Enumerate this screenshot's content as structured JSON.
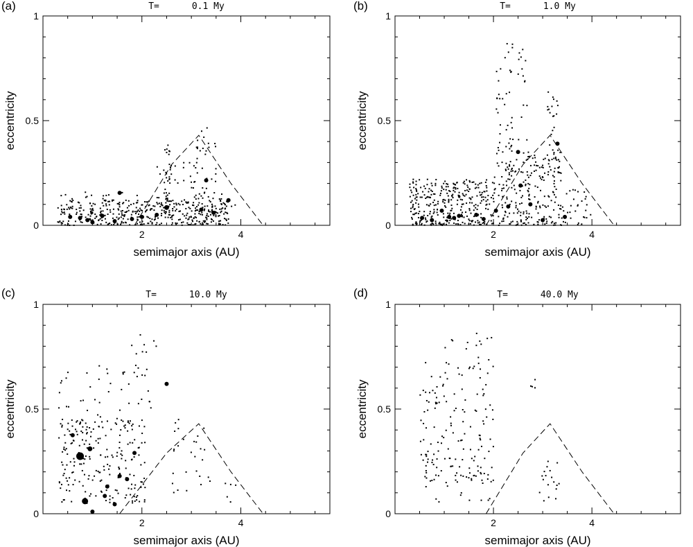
{
  "figure": {
    "background": "#ffffff",
    "ink": "#000000"
  },
  "chart_data": [
    {
      "id": "a",
      "panel_label": "(a)",
      "type": "scatter",
      "title": "T=      0.1 My",
      "xlabel": "semimajor axis (AU)",
      "ylabel": "eccentricity",
      "xlim": [
        0,
        5.8
      ],
      "ylim": [
        0,
        1
      ],
      "xticks": [
        2,
        4
      ],
      "xtick_labels": [
        "2",
        "4"
      ],
      "yticks": [
        0,
        0.5,
        1
      ],
      "ytick_labels": [
        "0",
        "0.5",
        "1"
      ],
      "boundary_curve": [
        [
          1.85,
          0.0
        ],
        [
          2.6,
          0.29
        ],
        [
          3.15,
          0.43
        ],
        [
          3.8,
          0.2
        ],
        [
          4.45,
          0.0
        ]
      ],
      "seed": 11,
      "cloud": [
        {
          "x": [
            0.3,
            3.75
          ],
          "y": [
            0.0,
            0.12
          ],
          "n": 380
        },
        {
          "x": [
            0.3,
            2.0
          ],
          "y": [
            0.05,
            0.16
          ],
          "n": 45
        },
        {
          "x": [
            2.45,
            2.6
          ],
          "y": [
            0.05,
            0.4
          ],
          "n": 30
        },
        {
          "x": [
            2.2,
            2.9
          ],
          "y": [
            0.12,
            0.3
          ],
          "n": 20
        },
        {
          "x": [
            2.95,
            3.5
          ],
          "y": [
            0.05,
            0.4
          ],
          "n": 55
        },
        {
          "x": [
            3.1,
            3.4
          ],
          "y": [
            0.3,
            0.48
          ],
          "n": 8
        },
        {
          "x": [
            3.55,
            3.95
          ],
          "y": [
            0.04,
            0.16
          ],
          "n": 12
        }
      ],
      "big": [
        [
          0.55,
          0.04,
          3
        ],
        [
          0.75,
          0.035,
          3
        ],
        [
          0.9,
          0.025,
          3
        ],
        [
          1.0,
          0.015,
          3
        ],
        [
          1.2,
          0.045,
          3
        ],
        [
          1.45,
          0.02,
          3
        ],
        [
          1.55,
          0.155,
          3
        ],
        [
          1.8,
          0.03,
          3
        ],
        [
          2.0,
          0.04,
          3
        ],
        [
          2.3,
          0.05,
          3
        ],
        [
          2.5,
          0.085,
          3.5
        ],
        [
          3.3,
          0.215,
          3
        ],
        [
          3.45,
          0.06,
          3
        ],
        [
          3.75,
          0.12,
          3
        ],
        [
          3.2,
          0.075,
          3
        ]
      ]
    },
    {
      "id": "b",
      "panel_label": "(b)",
      "type": "scatter",
      "title": "T=      1.0 My",
      "xlabel": "semimajor axis (AU)",
      "ylabel": "eccentricity",
      "xlim": [
        0,
        5.8
      ],
      "ylim": [
        0,
        1
      ],
      "xticks": [
        2,
        4
      ],
      "xtick_labels": [
        "2",
        "4"
      ],
      "yticks": [
        0,
        0.5,
        1
      ],
      "ytick_labels": [
        "0",
        "0.5",
        "1"
      ],
      "boundary_curve": [
        [
          1.85,
          0.0
        ],
        [
          2.6,
          0.29
        ],
        [
          3.15,
          0.43
        ],
        [
          3.8,
          0.2
        ],
        [
          4.45,
          0.0
        ]
      ],
      "seed": 23,
      "cloud": [
        {
          "x": [
            0.3,
            2.0
          ],
          "y": [
            0.0,
            0.22
          ],
          "n": 330
        },
        {
          "x": [
            2.0,
            3.4
          ],
          "y": [
            0.0,
            0.35
          ],
          "n": 240
        },
        {
          "x": [
            3.4,
            4.0
          ],
          "y": [
            0.0,
            0.18
          ],
          "n": 30
        },
        {
          "x": [
            2.05,
            2.4
          ],
          "y": [
            0.35,
            0.88
          ],
          "n": 40
        },
        {
          "x": [
            2.5,
            2.7
          ],
          "y": [
            0.4,
            0.85
          ],
          "n": 15
        },
        {
          "x": [
            3.1,
            3.35
          ],
          "y": [
            0.25,
            0.72
          ],
          "n": 25
        }
      ],
      "big": [
        [
          0.55,
          0.035,
          3
        ],
        [
          0.75,
          0.025,
          3
        ],
        [
          0.95,
          0.07,
          3
        ],
        [
          1.1,
          0.04,
          3
        ],
        [
          1.2,
          0.035,
          3
        ],
        [
          1.3,
          0.045,
          3
        ],
        [
          1.65,
          0.05,
          3
        ],
        [
          1.8,
          0.03,
          3
        ],
        [
          2.05,
          0.07,
          3
        ],
        [
          2.3,
          0.09,
          3
        ],
        [
          2.5,
          0.35,
          3
        ],
        [
          2.55,
          0.19,
          3
        ],
        [
          2.75,
          0.1,
          3
        ],
        [
          3.0,
          0.025,
          3
        ],
        [
          3.3,
          0.39,
          3
        ],
        [
          3.45,
          0.04,
          3
        ]
      ]
    },
    {
      "id": "c",
      "panel_label": "(c)",
      "type": "scatter",
      "title": "T=      10.0 My",
      "xlabel": "semimajor axis (AU)",
      "ylabel": "eccentricity",
      "xlim": [
        0,
        5.8
      ],
      "ylim": [
        0,
        1
      ],
      "xticks": [
        2,
        4
      ],
      "xtick_labels": [
        "2",
        "4"
      ],
      "yticks": [
        0,
        0.5,
        1
      ],
      "ytick_labels": [
        "0",
        "0.5",
        "1"
      ],
      "boundary_curve": [
        [
          1.55,
          0.0
        ],
        [
          2.5,
          0.29
        ],
        [
          3.15,
          0.43
        ],
        [
          3.8,
          0.2
        ],
        [
          4.45,
          0.0
        ]
      ],
      "seed": 37,
      "cloud": [
        {
          "x": [
            0.3,
            2.1
          ],
          "y": [
            0.05,
            0.45
          ],
          "n": 210
        },
        {
          "x": [
            0.3,
            2.3
          ],
          "y": [
            0.4,
            0.72
          ],
          "n": 60
        },
        {
          "x": [
            1.7,
            2.3
          ],
          "y": [
            0.6,
            0.86
          ],
          "n": 12
        },
        {
          "x": [
            2.6,
            3.4
          ],
          "y": [
            0.1,
            0.45
          ],
          "n": 28
        },
        {
          "x": [
            3.4,
            3.9
          ],
          "y": [
            0.05,
            0.15
          ],
          "n": 5
        }
      ],
      "big": [
        [
          0.6,
          0.375,
          3
        ],
        [
          0.75,
          0.275,
          5.5
        ],
        [
          0.85,
          0.06,
          4.5
        ],
        [
          0.95,
          0.31,
          3.5
        ],
        [
          1.0,
          0.01,
          3
        ],
        [
          1.25,
          0.085,
          3
        ],
        [
          1.3,
          0.13,
          3
        ],
        [
          1.45,
          0.045,
          3
        ],
        [
          1.55,
          0.18,
          3
        ],
        [
          1.7,
          0.165,
          3
        ],
        [
          1.85,
          0.29,
          3
        ],
        [
          2.5,
          0.62,
          3
        ]
      ]
    },
    {
      "id": "d",
      "panel_label": "(d)",
      "type": "scatter",
      "title": "T=      40.0 My",
      "xlabel": "semimajor axis (AU)",
      "ylabel": "eccentricity",
      "xlim": [
        0,
        5.8
      ],
      "ylim": [
        0,
        1
      ],
      "xticks": [
        2,
        4
      ],
      "xtick_labels": [
        "2",
        "4"
      ],
      "yticks": [
        0,
        0.5,
        1
      ],
      "ytick_labels": [
        "0",
        "0.5",
        "1"
      ],
      "boundary_curve": [
        [
          1.85,
          0.0
        ],
        [
          2.6,
          0.29
        ],
        [
          3.15,
          0.43
        ],
        [
          3.8,
          0.2
        ],
        [
          4.45,
          0.0
        ]
      ],
      "seed": 53,
      "cloud": [
        {
          "x": [
            0.5,
            2.0
          ],
          "y": [
            0.15,
            0.75
          ],
          "n": 150
        },
        {
          "x": [
            0.6,
            2.0
          ],
          "y": [
            0.05,
            0.3
          ],
          "n": 25
        },
        {
          "x": [
            1.0,
            2.1
          ],
          "y": [
            0.7,
            0.88
          ],
          "n": 12
        },
        {
          "x": [
            2.9,
            3.35
          ],
          "y": [
            0.05,
            0.25
          ],
          "n": 18
        },
        {
          "x": [
            2.65,
            2.85
          ],
          "y": [
            0.6,
            0.65
          ],
          "n": 4
        }
      ],
      "big": []
    }
  ]
}
